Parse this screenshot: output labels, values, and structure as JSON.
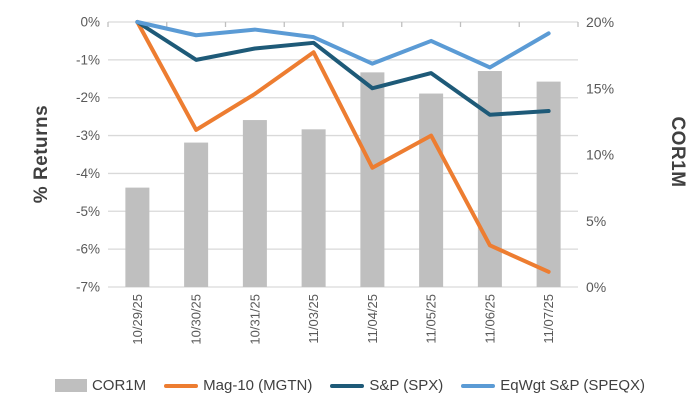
{
  "chart_data": {
    "type": "combo",
    "categories": [
      "10/29/25",
      "10/30/25",
      "10/31/25",
      "11/03/25",
      "11/04/25",
      "11/05/25",
      "11/06/25",
      "11/07/25"
    ],
    "series": [
      {
        "name": "COR1M",
        "type": "bar",
        "axis": "right",
        "color": "#BFBFBF",
        "values": [
          7.5,
          10.9,
          12.6,
          11.9,
          16.2,
          14.6,
          16.3,
          15.5
        ]
      },
      {
        "name": "Mag-10 (MGTN)",
        "type": "line",
        "axis": "left",
        "color": "#ED7D31",
        "values": [
          0,
          -2.85,
          -1.9,
          -0.8,
          -3.85,
          -3.0,
          -5.9,
          -6.6
        ]
      },
      {
        "name": "S&P (SPX)",
        "type": "line",
        "axis": "left",
        "color": "#1E5A78",
        "values": [
          0,
          -1.0,
          -0.7,
          -0.55,
          -1.75,
          -1.35,
          -2.45,
          -2.35
        ]
      },
      {
        "name": "EqWgt S&P (SPEQX)",
        "type": "line",
        "axis": "left",
        "color": "#5B9BD5",
        "values": [
          0,
          -0.35,
          -0.2,
          -0.4,
          -1.1,
          -0.5,
          -1.2,
          -0.3
        ]
      }
    ],
    "left_axis": {
      "label": "% Returns",
      "ticks": [
        "0%",
        "-1%",
        "-2%",
        "-3%",
        "-4%",
        "-5%",
        "-6%",
        "-7%"
      ],
      "range": [
        -7,
        0
      ]
    },
    "right_axis": {
      "label": "COR1M",
      "ticks": [
        "20%",
        "15%",
        "10%",
        "5%",
        "0%"
      ],
      "range": [
        0,
        20
      ]
    },
    "grid": true,
    "legend_position": "bottom"
  },
  "colors": {
    "gridline": "#D9D9D9",
    "tick_mark": "#BFBFBF",
    "tick_label": "#595959",
    "axis_title": "#404040"
  }
}
